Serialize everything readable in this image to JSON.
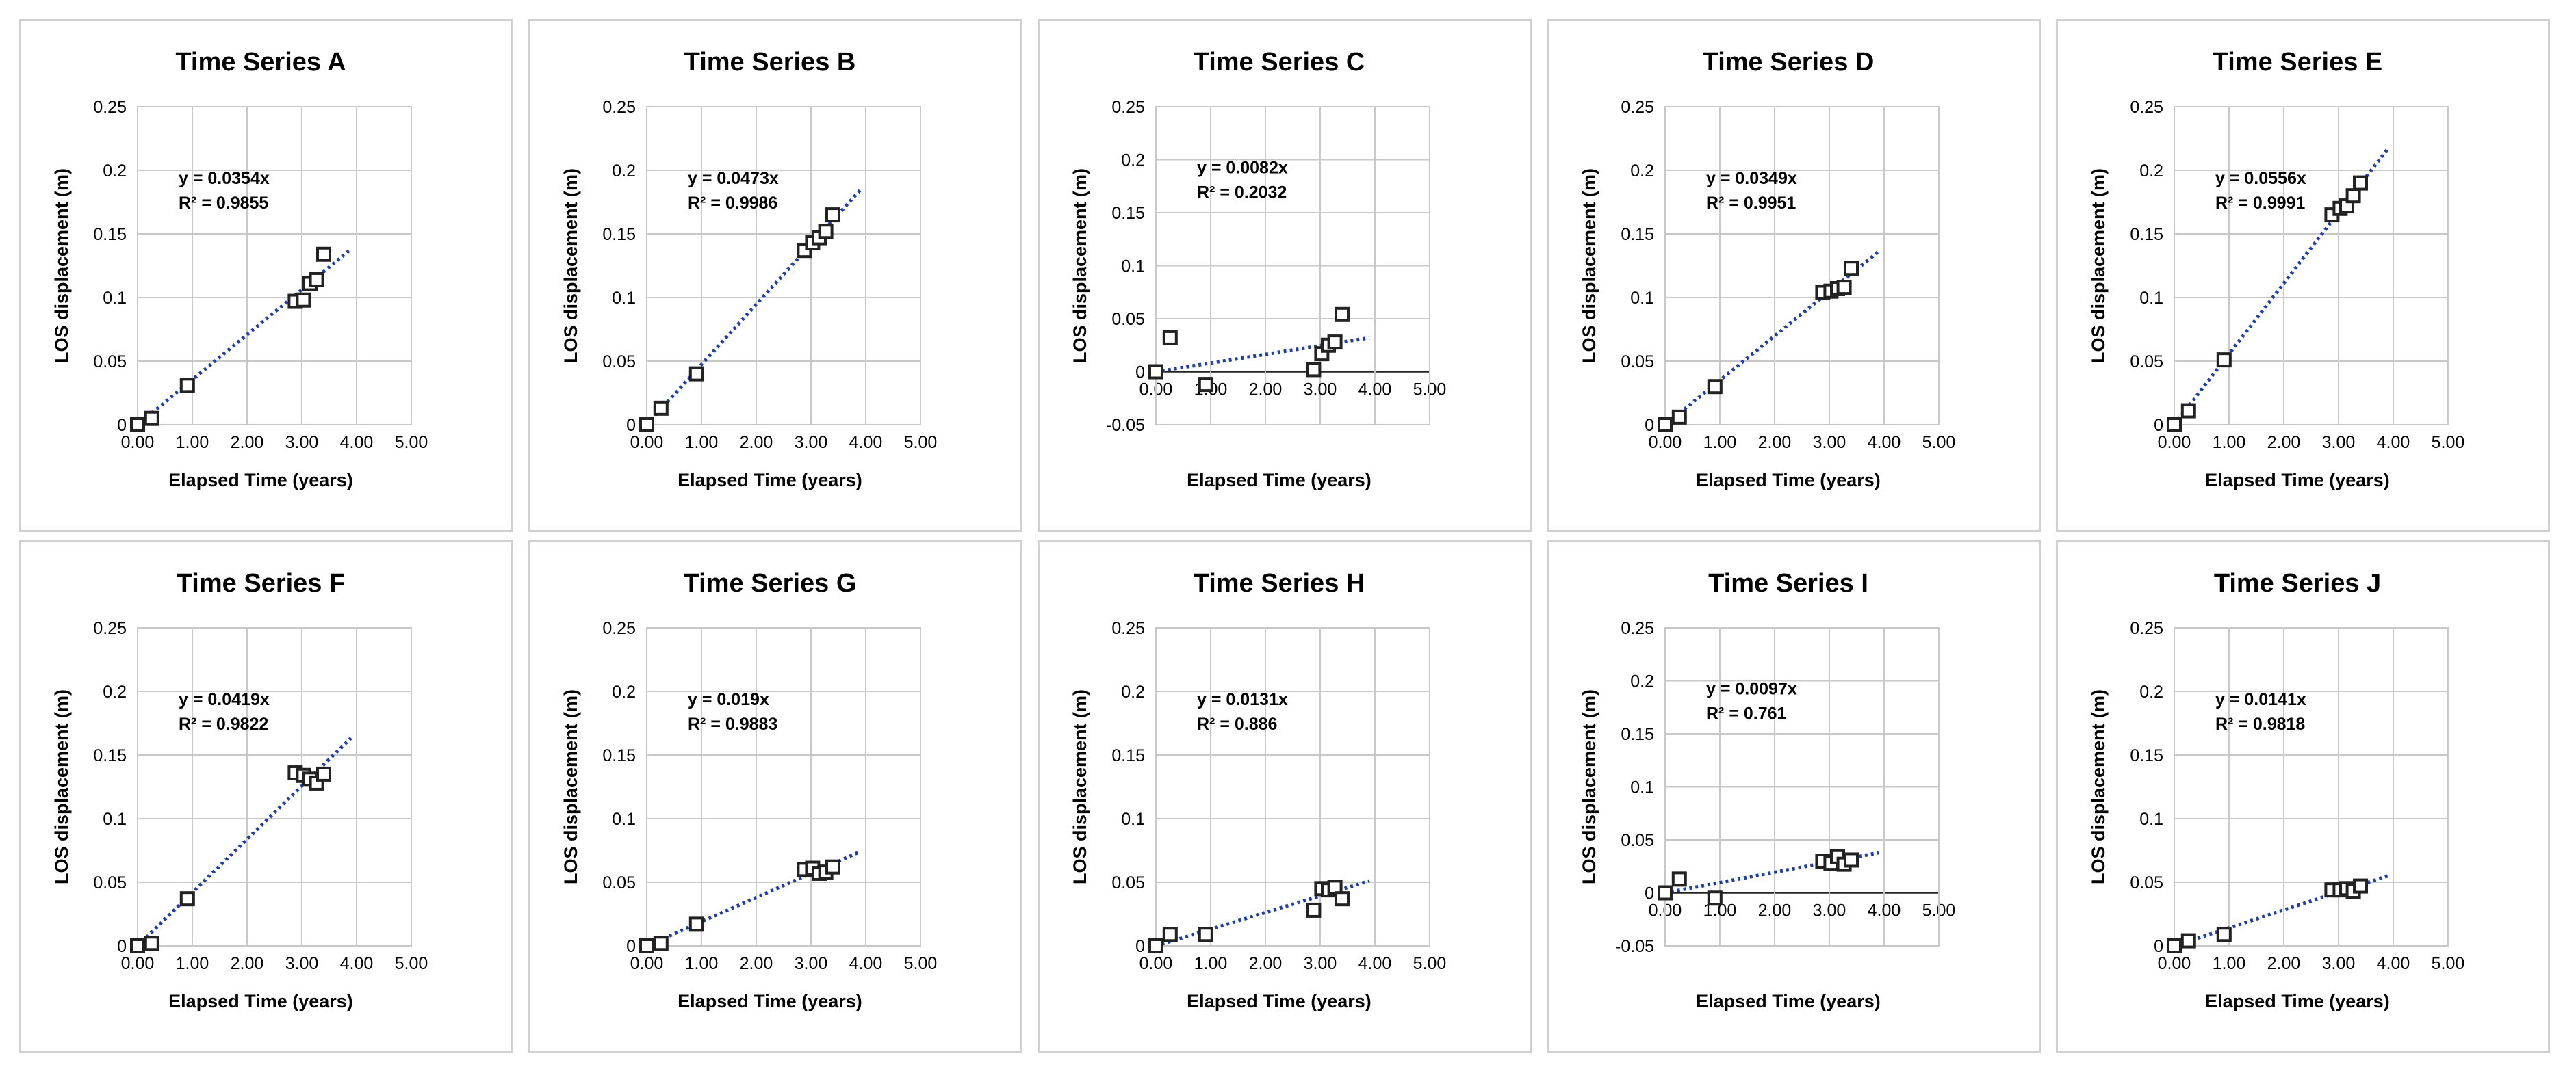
{
  "colors": {
    "trendline": "#1f3ea8",
    "marker_edge": "#222222",
    "grid": "#c8c8c8",
    "panel_border": "#d0d0d0"
  },
  "chart_data": [
    {
      "type": "scatter",
      "title": "Time Series A",
      "xlabel": "Elapsed Time (years)",
      "ylabel": "LOS displacement (m)",
      "xlim": [
        0,
        5
      ],
      "ylim": [
        0,
        0.25
      ],
      "xticks": [
        "0.00",
        "1.00",
        "2.00",
        "3.00",
        "4.00",
        "5.00"
      ],
      "yticks": [
        "0",
        "0.05",
        "0.1",
        "0.15",
        "0.2",
        "0.25"
      ],
      "x": [
        0,
        0.26,
        0.91,
        2.88,
        3.03,
        3.15,
        3.27,
        3.4
      ],
      "y": [
        0,
        0.005,
        0.031,
        0.097,
        0.098,
        0.111,
        0.114,
        0.134
      ],
      "trendline": {
        "slope": 0.0354,
        "x_end": 3.9
      },
      "equation": "y = 0.0354x",
      "r_squared": "R² = 0.9855"
    },
    {
      "type": "scatter",
      "title": "Time Series B",
      "xlabel": "Elapsed Time (years)",
      "ylabel": "LOS displacement (m)",
      "xlim": [
        0,
        5
      ],
      "ylim": [
        0,
        0.25
      ],
      "xticks": [
        "0.00",
        "1.00",
        "2.00",
        "3.00",
        "4.00",
        "5.00"
      ],
      "yticks": [
        "0",
        "0.05",
        "0.1",
        "0.15",
        "0.2",
        "0.25"
      ],
      "x": [
        0,
        0.26,
        0.91,
        2.88,
        3.03,
        3.15,
        3.27,
        3.4
      ],
      "y": [
        0,
        0.013,
        0.04,
        0.137,
        0.143,
        0.147,
        0.152,
        0.165
      ],
      "trendline": {
        "slope": 0.0473,
        "x_end": 3.9
      },
      "equation": "y = 0.0473x",
      "r_squared": "R² = 0.9986"
    },
    {
      "type": "scatter",
      "title": "Time Series C",
      "xlabel": "Elapsed Time (years)",
      "ylabel": "LOS displacement (m)",
      "xlim": [
        0,
        5
      ],
      "ylim": [
        -0.05,
        0.25
      ],
      "xticks": [
        "0.00",
        "1.00",
        "2.00",
        "3.00",
        "4.00",
        "5.00"
      ],
      "yticks": [
        "-0.05",
        "0",
        "0.05",
        "0.1",
        "0.15",
        "0.2",
        "0.25"
      ],
      "x": [
        0,
        0.26,
        0.91,
        2.88,
        3.03,
        3.15,
        3.27,
        3.4
      ],
      "y": [
        0,
        0.032,
        -0.012,
        0.002,
        0.017,
        0.025,
        0.028,
        0.054
      ],
      "trendline": {
        "slope": 0.0082,
        "x_end": 3.9
      },
      "equation": "y = 0.0082x",
      "r_squared": "R² = 0.2032"
    },
    {
      "type": "scatter",
      "title": "Time Series D",
      "xlabel": "Elapsed Time (years)",
      "ylabel": "LOS displacement (m)",
      "xlim": [
        0,
        5
      ],
      "ylim": [
        0,
        0.25
      ],
      "xticks": [
        "0.00",
        "1.00",
        "2.00",
        "3.00",
        "4.00",
        "5.00"
      ],
      "yticks": [
        "0",
        "0.05",
        "0.1",
        "0.15",
        "0.2",
        "0.25"
      ],
      "x": [
        0,
        0.26,
        0.91,
        2.88,
        3.03,
        3.15,
        3.27,
        3.4
      ],
      "y": [
        0,
        0.006,
        0.03,
        0.104,
        0.105,
        0.107,
        0.108,
        0.123
      ],
      "trendline": {
        "slope": 0.0349,
        "x_end": 3.9
      },
      "equation": "y = 0.0349x",
      "r_squared": "R² = 0.9951"
    },
    {
      "type": "scatter",
      "title": "Time Series E",
      "xlabel": "Elapsed Time (years)",
      "ylabel": "LOS displacement (m)",
      "xlim": [
        0,
        5
      ],
      "ylim": [
        0,
        0.25
      ],
      "xticks": [
        "0.00",
        "1.00",
        "2.00",
        "3.00",
        "4.00",
        "5.00"
      ],
      "yticks": [
        "0",
        "0.05",
        "0.1",
        "0.15",
        "0.2",
        "0.25"
      ],
      "x": [
        0,
        0.26,
        0.91,
        2.88,
        3.03,
        3.15,
        3.27,
        3.4
      ],
      "y": [
        0,
        0.011,
        0.051,
        0.165,
        0.17,
        0.172,
        0.18,
        0.19
      ],
      "trendline": {
        "slope": 0.0556,
        "x_end": 3.9
      },
      "equation": "y = 0.0556x",
      "r_squared": "R² = 0.9991"
    },
    {
      "type": "scatter",
      "title": "Time Series F",
      "xlabel": "Elapsed Time (years)",
      "ylabel": "LOS displacement (m)",
      "xlim": [
        0,
        5
      ],
      "ylim": [
        0,
        0.25
      ],
      "xticks": [
        "0.00",
        "1.00",
        "2.00",
        "3.00",
        "4.00",
        "5.00"
      ],
      "yticks": [
        "0",
        "0.05",
        "0.1",
        "0.15",
        "0.2",
        "0.25"
      ],
      "x": [
        0,
        0.26,
        0.91,
        2.88,
        3.03,
        3.15,
        3.27,
        3.4
      ],
      "y": [
        0,
        0.002,
        0.037,
        0.136,
        0.134,
        0.131,
        0.128,
        0.135
      ],
      "trendline": {
        "slope": 0.0419,
        "x_end": 3.9
      },
      "equation": "y = 0.0419x",
      "r_squared": "R² = 0.9822"
    },
    {
      "type": "scatter",
      "title": "Time Series G",
      "xlabel": "Elapsed Time (years)",
      "ylabel": "LOS displacement (m)",
      "xlim": [
        0,
        5
      ],
      "ylim": [
        0,
        0.25
      ],
      "xticks": [
        "0.00",
        "1.00",
        "2.00",
        "3.00",
        "4.00",
        "5.00"
      ],
      "yticks": [
        "0",
        "0.05",
        "0.1",
        "0.15",
        "0.2",
        "0.25"
      ],
      "x": [
        0,
        0.26,
        0.91,
        2.88,
        3.03,
        3.15,
        3.27,
        3.4
      ],
      "y": [
        0,
        0.002,
        0.017,
        0.06,
        0.061,
        0.057,
        0.058,
        0.062
      ],
      "trendline": {
        "slope": 0.019,
        "x_end": 3.9
      },
      "equation": "y = 0.019x",
      "r_squared": "R² = 0.9883"
    },
    {
      "type": "scatter",
      "title": "Time Series H",
      "xlabel": "Elapsed Time (years)",
      "ylabel": "LOS displacement (m)",
      "xlim": [
        0,
        5
      ],
      "ylim": [
        0,
        0.25
      ],
      "xticks": [
        "0.00",
        "1.00",
        "2.00",
        "3.00",
        "4.00",
        "5.00"
      ],
      "yticks": [
        "0",
        "0.05",
        "0.1",
        "0.15",
        "0.2",
        "0.25"
      ],
      "x": [
        0,
        0.26,
        0.91,
        2.88,
        3.03,
        3.15,
        3.27,
        3.4
      ],
      "y": [
        0,
        0.009,
        0.009,
        0.028,
        0.045,
        0.044,
        0.046,
        0.037
      ],
      "trendline": {
        "slope": 0.0131,
        "x_end": 3.9
      },
      "equation": "y = 0.0131x",
      "r_squared": "R² = 0.886"
    },
    {
      "type": "scatter",
      "title": "Time Series I",
      "xlabel": "Elapsed Time (years)",
      "ylabel": "LOS displacement (m)",
      "xlim": [
        0,
        5
      ],
      "ylim": [
        -0.05,
        0.25
      ],
      "xticks": [
        "0.00",
        "1.00",
        "2.00",
        "3.00",
        "4.00",
        "5.00"
      ],
      "yticks": [
        "-0.05",
        "0",
        "0.05",
        "0.1",
        "0.15",
        "0.2",
        "0.25"
      ],
      "x": [
        0,
        0.26,
        0.91,
        2.88,
        3.03,
        3.15,
        3.27,
        3.4
      ],
      "y": [
        0,
        0.013,
        -0.005,
        0.03,
        0.028,
        0.034,
        0.027,
        0.031
      ],
      "trendline": {
        "slope": 0.0097,
        "x_end": 3.9
      },
      "equation": "y = 0.0097x",
      "r_squared": "R² = 0.761"
    },
    {
      "type": "scatter",
      "title": "Time Series J",
      "xlabel": "Elapsed Time (years)",
      "ylabel": "LOS displacement (m)",
      "xlim": [
        0,
        5
      ],
      "ylim": [
        0,
        0.25
      ],
      "xticks": [
        "0.00",
        "1.00",
        "2.00",
        "3.00",
        "4.00",
        "5.00"
      ],
      "yticks": [
        "0",
        "0.05",
        "0.1",
        "0.15",
        "0.2",
        "0.25"
      ],
      "x": [
        0,
        0.26,
        0.91,
        2.88,
        3.03,
        3.15,
        3.27,
        3.4
      ],
      "y": [
        0,
        0.004,
        0.009,
        0.044,
        0.044,
        0.045,
        0.043,
        0.047
      ],
      "trendline": {
        "slope": 0.0141,
        "x_end": 3.9
      },
      "equation": "y = 0.0141x",
      "r_squared": "R² = 0.9818"
    }
  ]
}
